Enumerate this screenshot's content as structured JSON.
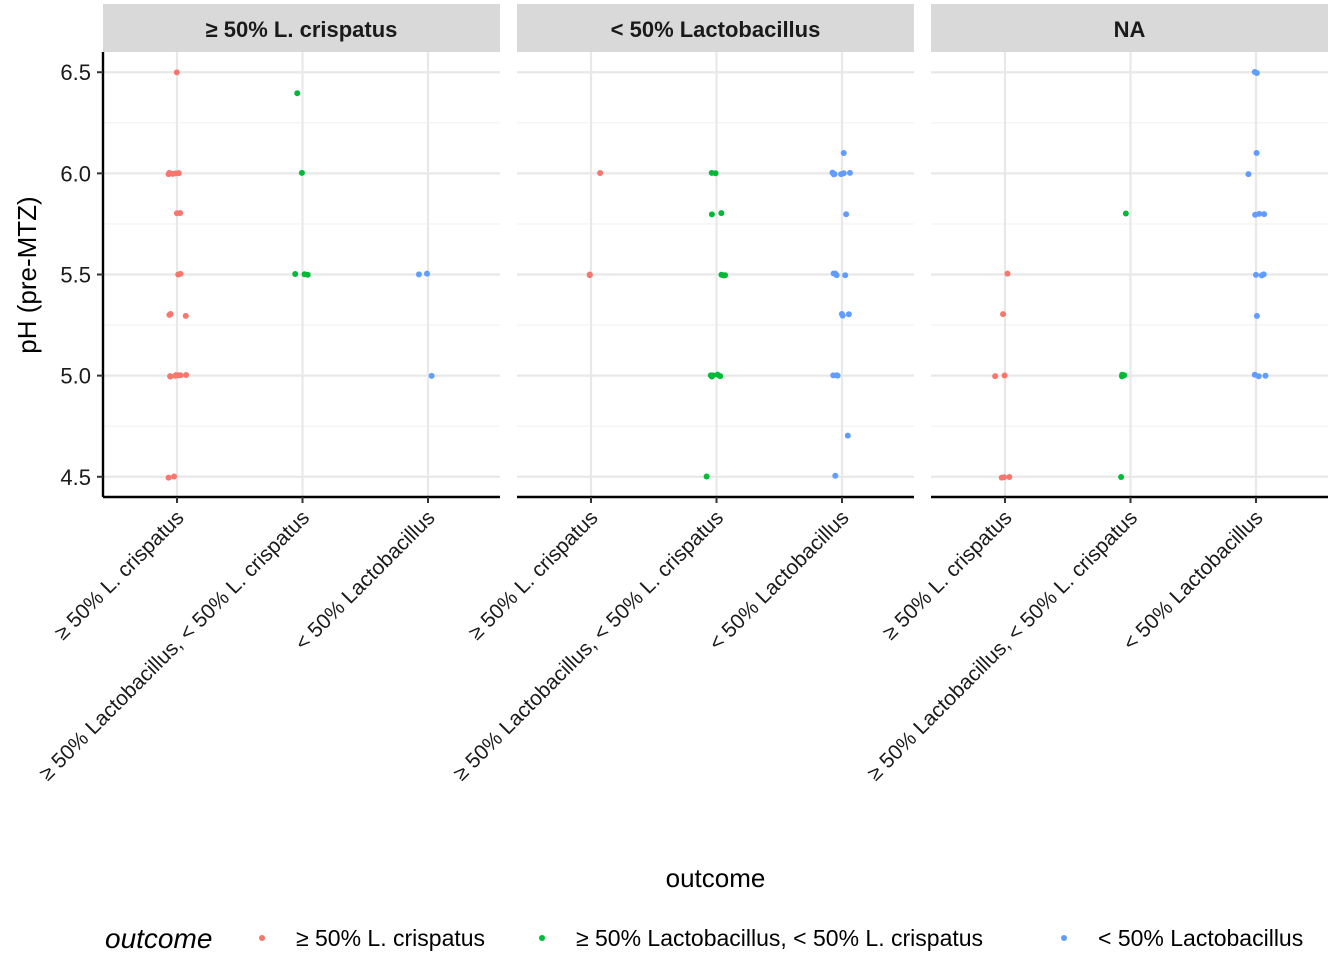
{
  "chart_data": {
    "type": "scatter",
    "title": "",
    "xlabel": "outcome",
    "ylabel": "pH (pre-MTZ)",
    "ylim": [
      4.4,
      6.6
    ],
    "yticks": [
      "4.5",
      "5.0",
      "5.5",
      "6.0",
      "6.5"
    ],
    "ytick_values": [
      4.5,
      5.0,
      5.5,
      6.0,
      6.5
    ],
    "grid": true,
    "categories": [
      "≥ 50% L. crispatus",
      "≥ 50% Lactobacillus, < 50% L. crispatus",
      "< 50% Lactobacillus"
    ],
    "colors": [
      "#F8766D",
      "#00BA38",
      "#619CFF"
    ],
    "legend": {
      "title": "outcome",
      "position": "bottom",
      "entries": [
        "≥ 50% L. crispatus",
        "≥ 50% Lactobacillus, < 50% L. crispatus",
        "< 50% Lactobacillus"
      ]
    },
    "facets": [
      {
        "label": "≥ 50% L. crispatus",
        "points": [
          {
            "cat": 0,
            "y": [
              6.5,
              6.0,
              6.0,
              6.0,
              6.0,
              6.0,
              5.8,
              5.8,
              5.5,
              5.5,
              5.3,
              5.3,
              5.3,
              5.0,
              5.0,
              5.0,
              5.0,
              5.0,
              5.0,
              5.0,
              4.5,
              4.5
            ]
          },
          {
            "cat": 1,
            "y": [
              6.4,
              6.0,
              5.5,
              5.5,
              5.5
            ]
          },
          {
            "cat": 2,
            "y": [
              5.5,
              5.5,
              5.0
            ]
          }
        ]
      },
      {
        "label": "< 50% Lactobacillus",
        "points": [
          {
            "cat": 0,
            "y": [
              6.0,
              5.5,
              5.5
            ]
          },
          {
            "cat": 1,
            "y": [
              6.0,
              6.0,
              5.8,
              5.8,
              5.5,
              5.5,
              5.5,
              5.0,
              5.0,
              5.0,
              5.0,
              5.0,
              4.5
            ]
          },
          {
            "cat": 2,
            "y": [
              6.1,
              6.0,
              6.0,
              6.0,
              6.0,
              6.0,
              6.0,
              5.8,
              5.5,
              5.5,
              5.5,
              5.5,
              5.3,
              5.3,
              5.3,
              5.0,
              5.0,
              5.0,
              4.7,
              4.5
            ]
          }
        ]
      },
      {
        "label": "NA",
        "points": [
          {
            "cat": 0,
            "y": [
              5.5,
              5.3,
              5.0,
              5.0,
              4.5,
              4.5,
              4.5
            ]
          },
          {
            "cat": 1,
            "y": [
              5.8,
              5.0,
              5.0,
              5.0,
              4.5
            ]
          },
          {
            "cat": 2,
            "y": [
              6.5,
              6.5,
              6.1,
              6.0,
              5.8,
              5.8,
              5.8,
              5.5,
              5.5,
              5.5,
              5.3,
              5.0,
              5.0,
              5.0
            ]
          }
        ]
      }
    ]
  }
}
